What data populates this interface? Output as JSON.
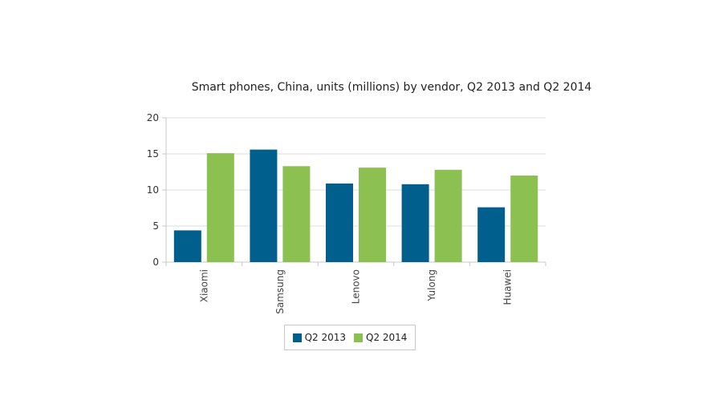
{
  "chart_data": {
    "type": "bar",
    "title": "Smart phones, China, units (millions) by vendor, Q2 2013 and Q2 2014",
    "categories": [
      "Xiaomi",
      "Samsung",
      "Lenovo",
      "Yulong",
      "Huawei"
    ],
    "series": [
      {
        "name": "Q2 2013",
        "color": "#005f8c",
        "values": [
          4.4,
          15.6,
          10.9,
          10.8,
          7.6
        ]
      },
      {
        "name": "Q2 2014",
        "color": "#8cc152",
        "values": [
          15.1,
          13.3,
          13.1,
          12.8,
          12.0
        ]
      }
    ],
    "ylim": [
      0,
      20
    ],
    "yticks": [
      0,
      5,
      10,
      15,
      20
    ],
    "grid": true,
    "legend_position": "bottom"
  }
}
